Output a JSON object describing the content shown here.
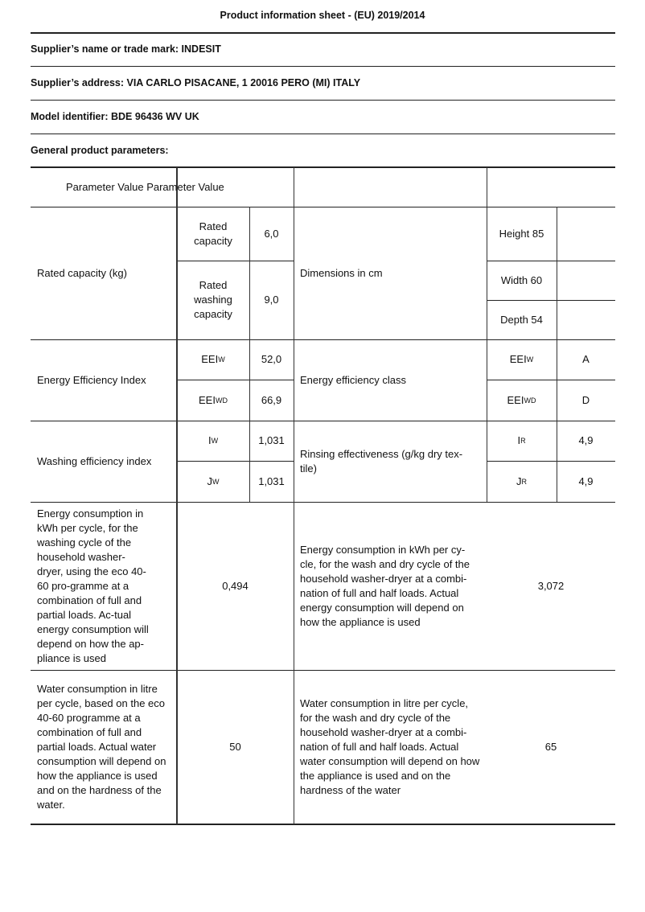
{
  "title": "Product information sheet - (EU) 2019/2014",
  "supplier_name": "Supplier’s name or trade mark: INDESIT",
  "supplier_address": "Supplier’s address: VIA CARLO PISACANE, 1 20016 PERO (MI) ITALY",
  "model": "Model identifier: BDE 96436 WV UK",
  "general": "General product parameters:",
  "table": {
    "header": "Parameter Value Parameter Value",
    "rated": {
      "label": "Rated capacity (kg)",
      "sub1": "Rated capacity",
      "val1": "6,0",
      "sub2": "Rated washing capacity",
      "val2": "9,0"
    },
    "dims": {
      "label": "Dimensions in cm",
      "height": "Height 85",
      "width": "Width 60",
      "depth": "Depth 54"
    },
    "eei": {
      "label": "Energy Efficiency Index",
      "s1": {
        "base": "EEI",
        "sub": "W"
      },
      "v1": "52,0",
      "s2": {
        "base": "EEI",
        "sub": "WD"
      },
      "v2": "66,9"
    },
    "eec": {
      "label": "Energy efficiency class",
      "s1": {
        "base": "EEI",
        "sub": "W"
      },
      "v1": "A",
      "s2": {
        "base": "EEI",
        "sub": "WD"
      },
      "v2": "D"
    },
    "wash": {
      "label": "Washing efficiency index",
      "s1": {
        "base": "I",
        "sub": "W"
      },
      "v1": "1,031",
      "s2": {
        "base": "J",
        "sub": "W"
      },
      "v2": "1,031"
    },
    "rinse": {
      "label": "Rinsing effectiveness (g/kg dry tex-tile)",
      "s1": {
        "base": "I",
        "sub": "R"
      },
      "v1": "4,9",
      "s2": {
        "base": "J",
        "sub": "R"
      },
      "v2": "4,9"
    },
    "energy": {
      "label": "Energy consumption in kWh per cycle, for the washing cycle of the household washer-dryer, using the eco 40-60 pro-gramme at a combination of full and partial loads. Ac-tual energy consumption will depend on how the ap-pliance is used",
      "value": "0,494",
      "label2": "Energy consumption in kWh per cy-cle, for the wash and dry cycle of the household washer-dryer at a combi-nation of full and half loads. Actual energy consumption will depend on how the appliance is used",
      "value2": "3,072"
    },
    "water": {
      "label": "Water consumption in litre per cycle, based on the eco 40-60 programme at a combination of full and partial loads. Actual water consumption will depend on how the appliance is used and on the hardness of the water.",
      "value": "50",
      "label2": "Water consumption in litre per cycle, for the wash and dry cycle of the household washer-dryer at a combi-nation of full and half loads. Actual water consumption will depend on how the appliance is used and on the hardness of the water",
      "value2": "65"
    }
  }
}
